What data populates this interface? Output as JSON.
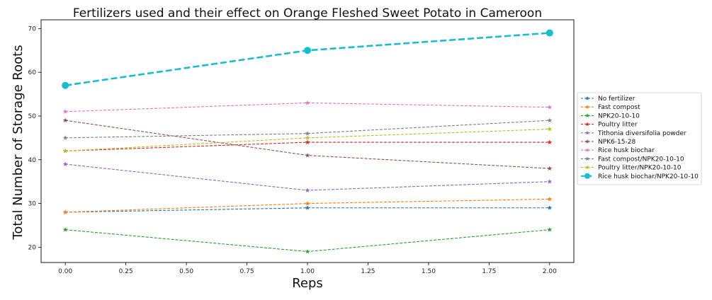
{
  "chart_data": {
    "type": "line",
    "title": "Fertilizers used and their effect on Orange Fleshed Sweet Potato in Cameroon",
    "xlabel": "Reps",
    "ylabel": "Total Number of Storage Roots",
    "x": [
      0,
      1,
      2
    ],
    "xlim": [
      -0.1,
      2.1
    ],
    "ylim": [
      16.5,
      72
    ],
    "xticks": [
      "0.00",
      "0.25",
      "0.50",
      "0.75",
      "1.00",
      "1.25",
      "1.50",
      "1.75",
      "2.00"
    ],
    "xtick_values": [
      0,
      0.25,
      0.5,
      0.75,
      1.0,
      1.25,
      1.5,
      1.75,
      2.0
    ],
    "yticks": [
      "20",
      "30",
      "40",
      "50",
      "60",
      "70"
    ],
    "ytick_values": [
      20,
      30,
      40,
      50,
      60,
      70
    ],
    "grid": false,
    "legend_position": "right",
    "series": [
      {
        "name": "No fertilizer",
        "values": [
          28,
          29,
          29
        ],
        "color": "#1f77b4",
        "marker": "star"
      },
      {
        "name": "Fast compost",
        "values": [
          28,
          30,
          31
        ],
        "color": "#ff7f0e",
        "marker": "star"
      },
      {
        "name": "NPK20-10-10",
        "values": [
          24,
          19,
          24
        ],
        "color": "#2ca02c",
        "marker": "star"
      },
      {
        "name": "Poultry litter",
        "values": [
          42,
          44,
          44
        ],
        "color": "#d62728",
        "marker": "star"
      },
      {
        "name": "Tithonia diversifolia powder",
        "values": [
          39,
          33,
          35
        ],
        "color": "#9467bd",
        "marker": "star"
      },
      {
        "name": "NPK6-15-28",
        "values": [
          49,
          41,
          38
        ],
        "color": "#8c564b",
        "marker": "star"
      },
      {
        "name": "Rice husk biochar",
        "values": [
          51,
          53,
          52
        ],
        "color": "#e377c2",
        "marker": "star"
      },
      {
        "name": "Fast compost/NPK20-10-10",
        "values": [
          45,
          46,
          49
        ],
        "color": "#7f7f7f",
        "marker": "star"
      },
      {
        "name": "Poultry litter/NPK20-10-10",
        "values": [
          42,
          45,
          47
        ],
        "color": "#bcbd22",
        "marker": "star"
      },
      {
        "name": "Rice husk biochar/NPK20-10-10",
        "values": [
          57,
          65,
          69
        ],
        "color": "#17becf",
        "marker": "circle",
        "emphasis": true
      }
    ]
  }
}
